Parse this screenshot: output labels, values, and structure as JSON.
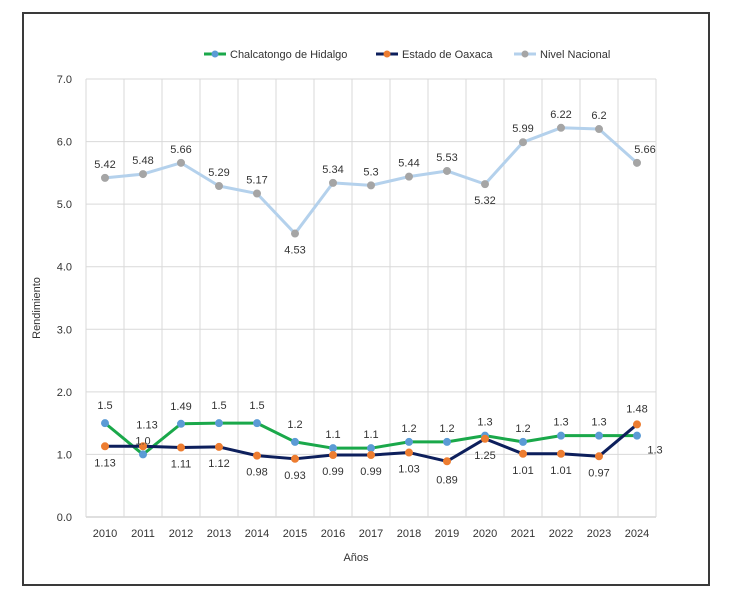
{
  "chart_data": {
    "type": "line",
    "xlabel": "Años",
    "ylabel": "Rendimiento",
    "ylim": [
      0,
      7
    ],
    "yticks": [
      "0.0",
      "1.0",
      "2.0",
      "3.0",
      "4.0",
      "5.0",
      "6.0",
      "7.0"
    ],
    "categories": [
      "2010",
      "2011",
      "2012",
      "2013",
      "2014",
      "2015",
      "2016",
      "2017",
      "2018",
      "2019",
      "2020",
      "2021",
      "2022",
      "2023",
      "2024"
    ],
    "grid": true,
    "legend_position": "top",
    "series": [
      {
        "name": "Chalcatongo de Hidalgo",
        "line_color": "#1aa84a",
        "marker_color": "#5b9bd5",
        "values": [
          1.5,
          1.0,
          1.49,
          1.5,
          1.5,
          1.2,
          1.1,
          1.1,
          1.2,
          1.2,
          1.3,
          1.2,
          1.3,
          1.3,
          1.3
        ],
        "labels": [
          "1.5",
          "1.0",
          "1.49",
          "1.5",
          "1.5",
          "1.2",
          "1.1",
          "1.1",
          "1.2",
          "1.2",
          "1.3",
          "1.2",
          "1.3",
          "1.3",
          "1.3"
        ]
      },
      {
        "name": "Estado de Oaxaca",
        "line_color": "#0d1f5c",
        "marker_color": "#ed7d31",
        "values": [
          1.13,
          1.13,
          1.11,
          1.12,
          0.98,
          0.93,
          0.99,
          0.99,
          1.03,
          0.89,
          1.25,
          1.01,
          1.01,
          0.97,
          1.48
        ],
        "labels": [
          "1.13",
          "1.13",
          "1.11",
          "1.12",
          "0.98",
          "0.93",
          "0.99",
          "0.99",
          "1.03",
          "0.89",
          "1.25",
          "1.01",
          "1.01",
          "0.97",
          "1.48"
        ]
      },
      {
        "name": "Nivel Nacional",
        "line_color": "#b4d1ec",
        "marker_color": "#a5a5a5",
        "values": [
          5.42,
          5.48,
          5.66,
          5.29,
          5.17,
          4.53,
          5.34,
          5.3,
          5.44,
          5.53,
          5.32,
          5.99,
          6.22,
          6.2,
          5.66
        ],
        "labels": [
          "5.42",
          "5.48",
          "5.66",
          "5.29",
          "5.17",
          "4.53",
          "5.34",
          "5.3",
          "5.44",
          "5.53",
          "5.32",
          "5.99",
          "6.22",
          "6.2",
          "5.66"
        ]
      }
    ]
  }
}
